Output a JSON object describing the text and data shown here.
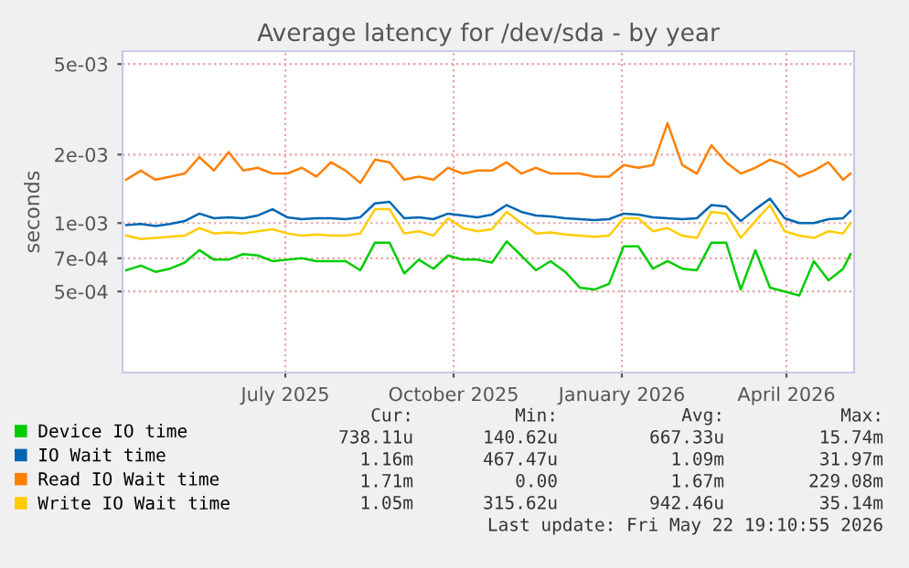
{
  "chart_data": {
    "type": "line",
    "title": "Average latency for /dev/sda - by year",
    "ylabel": "seconds",
    "x": [
      "2025-04-20",
      "2025-04-28",
      "2025-05-06",
      "2025-05-14",
      "2025-05-22",
      "2025-05-30",
      "2025-06-07",
      "2025-06-15",
      "2025-06-23",
      "2025-07-01",
      "2025-07-09",
      "2025-07-17",
      "2025-07-25",
      "2025-08-02",
      "2025-08-10",
      "2025-08-18",
      "2025-08-26",
      "2025-09-03",
      "2025-09-11",
      "2025-09-19",
      "2025-09-27",
      "2025-10-05",
      "2025-10-13",
      "2025-10-21",
      "2025-10-29",
      "2025-11-06",
      "2025-11-14",
      "2025-11-22",
      "2025-11-30",
      "2025-12-08",
      "2025-12-16",
      "2025-12-24",
      "2026-01-01",
      "2026-01-09",
      "2026-01-17",
      "2026-01-25",
      "2026-02-02",
      "2026-02-10",
      "2026-02-18",
      "2026-02-26",
      "2026-03-06",
      "2026-03-14",
      "2026-03-22",
      "2026-03-30",
      "2026-04-07",
      "2026-04-15",
      "2026-04-23",
      "2026-05-01",
      "2026-05-09",
      "2026-05-17",
      "2026-05-21"
    ],
    "series": [
      {
        "name": "Device IO time",
        "color": "#00cc00",
        "values": [
          0.00062,
          0.00065,
          0.00061,
          0.00063,
          0.00067,
          0.00076,
          0.00069,
          0.00069,
          0.00073,
          0.00072,
          0.00068,
          0.00069,
          0.0007,
          0.00068,
          0.00068,
          0.00068,
          0.00062,
          0.00082,
          0.00082,
          0.0006,
          0.00069,
          0.00063,
          0.00072,
          0.00069,
          0.00069,
          0.00067,
          0.00083,
          0.00072,
          0.00062,
          0.00068,
          0.00061,
          0.00052,
          0.00051,
          0.00054,
          0.00079,
          0.00079,
          0.00063,
          0.00068,
          0.00063,
          0.00062,
          0.00082,
          0.00082,
          0.00051,
          0.00076,
          0.00052,
          0.0005,
          0.00048,
          0.00068,
          0.00056,
          0.00063,
          0.00073
        ]
      },
      {
        "name": "IO Wait time",
        "color": "#0066b3",
        "values": [
          0.00098,
          0.00099,
          0.00097,
          0.00099,
          0.00102,
          0.0011,
          0.00105,
          0.00106,
          0.00105,
          0.00108,
          0.00115,
          0.00106,
          0.00104,
          0.00105,
          0.00105,
          0.00104,
          0.00106,
          0.00122,
          0.00124,
          0.00105,
          0.00106,
          0.00104,
          0.0011,
          0.00108,
          0.00106,
          0.00109,
          0.0012,
          0.00112,
          0.00108,
          0.00107,
          0.00105,
          0.00104,
          0.00103,
          0.00104,
          0.0011,
          0.00109,
          0.00106,
          0.00105,
          0.00104,
          0.00105,
          0.0012,
          0.00118,
          0.00102,
          0.00115,
          0.00128,
          0.00105,
          0.001,
          0.001,
          0.00104,
          0.00105,
          0.00113
        ]
      },
      {
        "name": "Read IO Wait time",
        "color": "#ff8000",
        "values": [
          0.00155,
          0.0017,
          0.00155,
          0.0016,
          0.00165,
          0.00195,
          0.0017,
          0.00205,
          0.0017,
          0.00175,
          0.00165,
          0.00165,
          0.00175,
          0.0016,
          0.00185,
          0.0017,
          0.0015,
          0.0019,
          0.00185,
          0.00155,
          0.0016,
          0.00155,
          0.00175,
          0.00165,
          0.0017,
          0.0017,
          0.00185,
          0.00165,
          0.00175,
          0.00165,
          0.00165,
          0.00165,
          0.0016,
          0.0016,
          0.0018,
          0.00175,
          0.0018,
          0.00275,
          0.0018,
          0.00165,
          0.0022,
          0.00185,
          0.00165,
          0.00175,
          0.0019,
          0.0018,
          0.0016,
          0.0017,
          0.00185,
          0.00155,
          0.00165
        ]
      },
      {
        "name": "Write IO Wait time",
        "color": "#ffcc00",
        "values": [
          0.00088,
          0.00085,
          0.00086,
          0.00087,
          0.00088,
          0.00095,
          0.0009,
          0.00091,
          0.0009,
          0.00092,
          0.00094,
          0.0009,
          0.00088,
          0.00089,
          0.00088,
          0.00088,
          0.0009,
          0.00115,
          0.00115,
          0.0009,
          0.00092,
          0.00088,
          0.00105,
          0.00095,
          0.00092,
          0.00094,
          0.00112,
          0.001,
          0.0009,
          0.00091,
          0.00089,
          0.00088,
          0.00087,
          0.00088,
          0.00105,
          0.00105,
          0.00092,
          0.00095,
          0.00088,
          0.00086,
          0.00112,
          0.0011,
          0.00086,
          0.00102,
          0.0012,
          0.00092,
          0.00088,
          0.00086,
          0.00092,
          0.0009,
          0.001
        ]
      }
    ],
    "log": "y",
    "ylim": [
      0.00022,
      0.0057
    ],
    "yticks": [
      {
        "value": 0.0005,
        "label": "5e-04"
      },
      {
        "value": 0.0007,
        "label": "7e-04"
      },
      {
        "value": 0.001,
        "label": "1e-03"
      },
      {
        "value": 0.002,
        "label": "2e-03"
      },
      {
        "value": 0.005,
        "label": "5e-03"
      }
    ],
    "xlim": [
      "2025-04-18",
      "2026-05-23"
    ],
    "xticks": [
      {
        "value": "2025-07-16",
        "label": "July 2025"
      },
      {
        "value": "2025-10-16",
        "label": "October 2025"
      },
      {
        "value": "2026-01-16",
        "label": "January 2026"
      },
      {
        "value": "2026-04-16",
        "label": "April 2026"
      }
    ],
    "grid": true,
    "legend": "bottom",
    "marker": "none",
    "line_style": "solid",
    "annotations": [
      "Cur:",
      "Min:",
      "Avg:",
      "Max:",
      "738.11u",
      "140.62u",
      "667.33u",
      "15.74m",
      "1.16m",
      "467.47u",
      "1.09m",
      "31.97m",
      "1.71m",
      "0.00",
      "1.67m",
      "229.08m",
      "1.05m",
      "315.62u",
      "942.46u",
      "35.14m",
      "Last update: Fri May 22 19:10:55 2026"
    ]
  }
}
